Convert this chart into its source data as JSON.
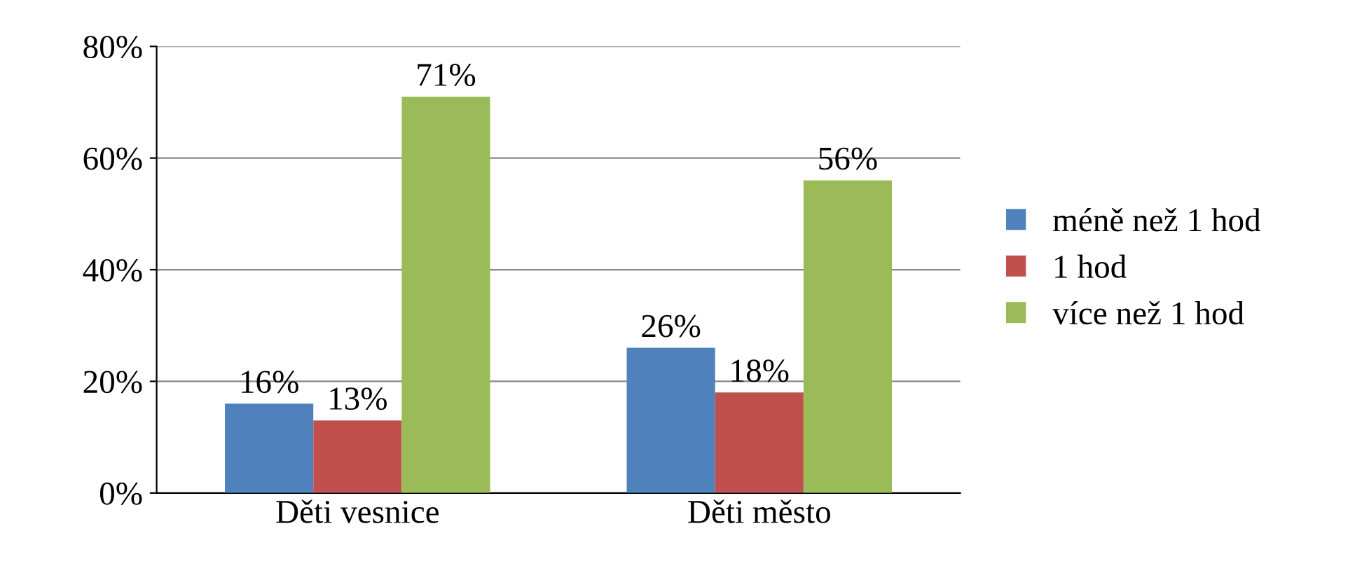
{
  "chart_data": {
    "type": "bar",
    "categories": [
      "Děti vesnice",
      "Děti město"
    ],
    "series": [
      {
        "name": "méně než 1 hod",
        "color": "#4f81bd",
        "values": [
          16,
          26
        ],
        "value_labels": [
          "16%",
          "26%"
        ]
      },
      {
        "name": "1 hod",
        "color": "#c0504d",
        "values": [
          13,
          18
        ],
        "value_labels": [
          "13%",
          "18%"
        ]
      },
      {
        "name": "více než 1 hod",
        "color": "#9bbb59",
        "values": [
          71,
          56
        ],
        "value_labels": [
          "71%",
          "56%"
        ]
      }
    ],
    "ylim": [
      0,
      80
    ],
    "yticks": [
      {
        "value": 0,
        "label": "0%"
      },
      {
        "value": 20,
        "label": "20%"
      },
      {
        "value": 40,
        "label": "40%"
      },
      {
        "value": 60,
        "label": "60%"
      },
      {
        "value": 80,
        "label": "80%"
      }
    ],
    "grid": "y",
    "legend": "right"
  }
}
